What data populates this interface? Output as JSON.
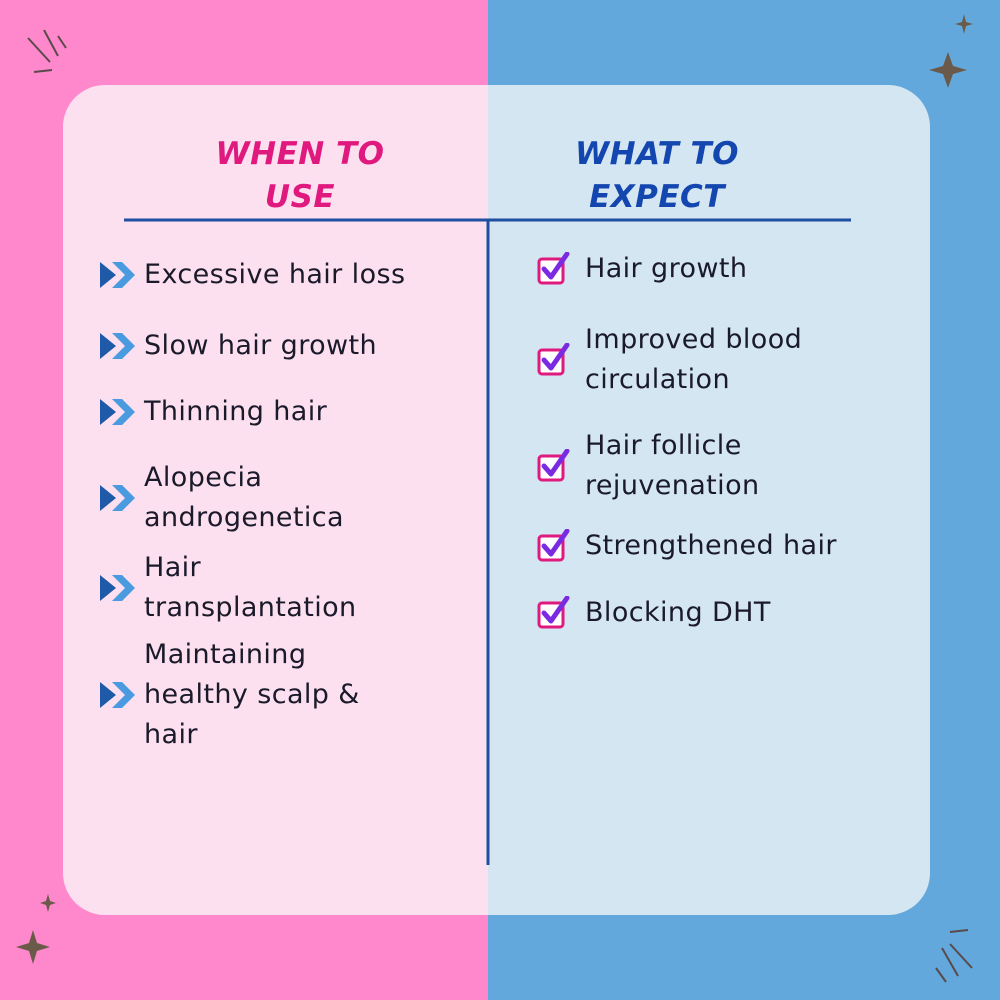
{
  "left": {
    "title": "WHEN TO\nUSE",
    "items": [
      "Excessive hair loss",
      "Slow hair growth",
      "Thinning hair",
      "Alopecia\nandrogenetica",
      "Hair\ntransplantation",
      "Maintaining\nhealthy scalp &\nhair"
    ]
  },
  "right": {
    "title": "WHAT TO\nEXPECT",
    "items": [
      "Hair growth",
      "Improved blood\ncirculation",
      "Hair follicle\nrejuvenation",
      "Strengthened hair",
      "Blocking DHT"
    ]
  }
}
